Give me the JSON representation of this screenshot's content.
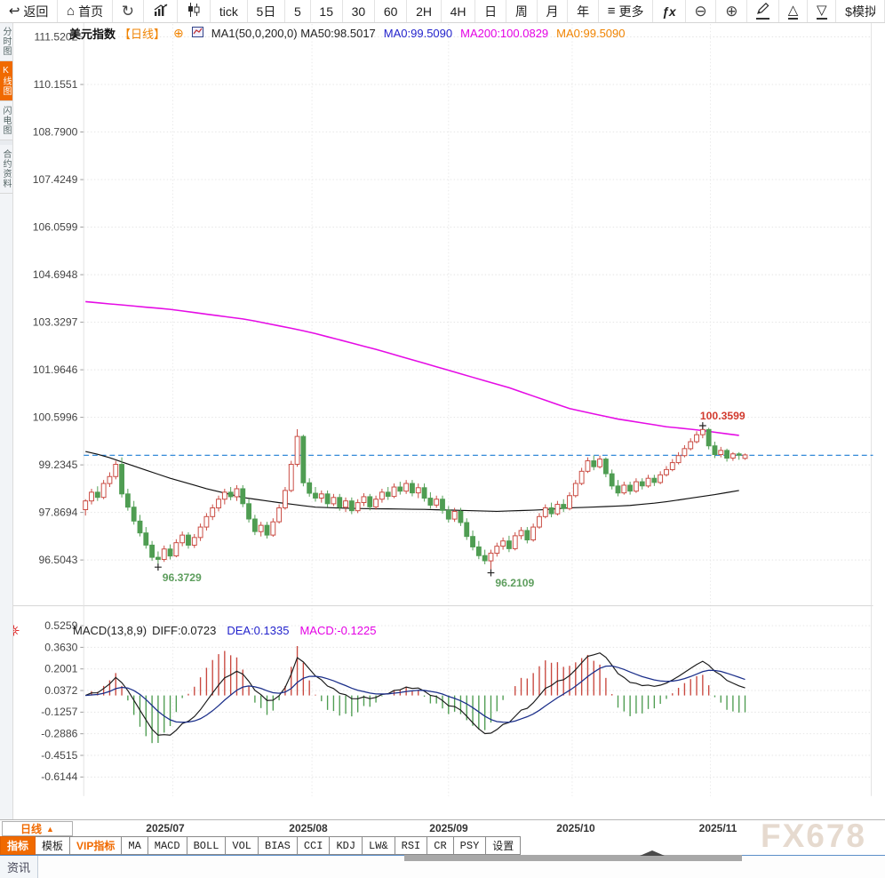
{
  "toolbar": {
    "items": [
      {
        "name": "back",
        "glyph": "↩",
        "label": "返回"
      },
      {
        "name": "home",
        "glyph": "⌂",
        "label": "首页"
      },
      {
        "name": "refresh",
        "glyph": "↻",
        "big": true
      },
      {
        "name": "line-chart",
        "svg": "lineChart"
      },
      {
        "name": "candlestick",
        "svg": "candle"
      },
      {
        "name": "tick",
        "label": "tick"
      },
      {
        "name": "period-5d",
        "label": "5日"
      },
      {
        "name": "period-5",
        "label": "5"
      },
      {
        "name": "period-15",
        "label": "15"
      },
      {
        "name": "period-30",
        "label": "30"
      },
      {
        "name": "period-60",
        "label": "60"
      },
      {
        "name": "period-2h",
        "label": "2H"
      },
      {
        "name": "period-4h",
        "label": "4H"
      },
      {
        "name": "period-day",
        "label": "日"
      },
      {
        "name": "period-week",
        "label": "周"
      },
      {
        "name": "period-month",
        "label": "月"
      },
      {
        "name": "period-year",
        "label": "年"
      },
      {
        "name": "more",
        "glyph": "≡",
        "label": "更多"
      },
      {
        "name": "fx",
        "label": "ƒx",
        "italic": true
      },
      {
        "name": "zoom-out",
        "glyph": "⊖",
        "big": true
      },
      {
        "name": "zoom-in",
        "glyph": "⊕",
        "big": true
      },
      {
        "name": "draw",
        "svg": "pencil",
        "underline": true
      },
      {
        "name": "shape-up",
        "glyph": "△",
        "underline": true
      },
      {
        "name": "shape-down",
        "glyph": "▽",
        "underline": true
      },
      {
        "name": "sim-trade",
        "label": "$模拟",
        "clip": true
      }
    ]
  },
  "sidebar": {
    "items": [
      {
        "label": "分时图",
        "active": false
      },
      {
        "label": "K线图",
        "active": true
      },
      {
        "label": "闪电图",
        "active": false
      },
      {
        "label": "合约资料",
        "active": false
      }
    ]
  },
  "chart_header": {
    "symbol": "美元指数",
    "period": "【日线】",
    "expand_icon": "⊕",
    "ma_settings": "MA1(50,0,200,0) MA50:98.5017",
    "ma0_blue": "MA0:99.5090",
    "ma200": "MA200:100.0829",
    "ma0_orange": "MA0:99.5090"
  },
  "macd_header": {
    "title": "MACD(13,8,9)",
    "diff": "DIFF:0.0723",
    "dea": "DEA:0.1335",
    "macd": "MACD:-0.1225"
  },
  "bottom": {
    "period_label": "日线",
    "period_arrow": "▲",
    "tabs": [
      {
        "label": "指标",
        "active": true
      },
      {
        "label": "模板"
      },
      {
        "label": "VIP指标",
        "vip": true
      },
      {
        "label": "MA",
        "mono": true
      },
      {
        "label": "MACD",
        "mono": true
      },
      {
        "label": "BOLL",
        "mono": true
      },
      {
        "label": "VOL",
        "mono": true
      },
      {
        "label": "BIAS",
        "mono": true
      },
      {
        "label": "CCI",
        "mono": true
      },
      {
        "label": "KDJ",
        "mono": true
      },
      {
        "label": "LW&",
        "mono": true
      },
      {
        "label": "RSI",
        "mono": true
      },
      {
        "label": "CR",
        "mono": true
      },
      {
        "label": "PSY",
        "mono": true
      },
      {
        "label": "设置"
      }
    ],
    "news_tab": "资讯"
  },
  "watermark": "FX678",
  "colors": {
    "accent": "#f06a00",
    "up": "#c9483f",
    "down": "#4f9d52",
    "ma50": "#111111",
    "ma200": "#e50ce5",
    "diff_line": "#1a1a1a",
    "dea_line": "#1b2f8a",
    "price_line": "#1b7cd4",
    "annotation_high": "#d23b2f",
    "annotation_low": "#5e9e5e"
  },
  "chart_data": {
    "type": "candlestick",
    "title": "美元指数 日线",
    "price_ticks": [
      "111.5202",
      "110.1551",
      "108.7900",
      "107.4249",
      "106.0599",
      "104.6948",
      "103.3297",
      "101.9646",
      "100.5996",
      "99.2345",
      "97.8694",
      "96.5043"
    ],
    "macd_ticks": [
      "0.5259",
      "0.3630",
      "0.2001",
      "0.0372",
      "-0.1257",
      "-0.2886",
      "-0.4515",
      "-0.6144"
    ],
    "month_labels": [
      "2025/07",
      "2025/08",
      "2025/09",
      "2025/10",
      "2025/11"
    ],
    "current_price": 99.51,
    "candles": [
      [
        97.95,
        98.25,
        97.78,
        98.2
      ],
      [
        98.2,
        98.55,
        98.1,
        98.45
      ],
      [
        98.45,
        98.62,
        98.2,
        98.3
      ],
      [
        98.3,
        98.8,
        98.25,
        98.7
      ],
      [
        98.7,
        99.02,
        98.6,
        98.9
      ],
      [
        98.9,
        99.35,
        98.82,
        99.25
      ],
      [
        99.25,
        99.45,
        98.3,
        98.4
      ],
      [
        98.4,
        98.55,
        97.92,
        98.02
      ],
      [
        98.02,
        98.2,
        97.52,
        97.62
      ],
      [
        97.62,
        97.8,
        97.18,
        97.28
      ],
      [
        97.28,
        97.45,
        96.83,
        96.93
      ],
      [
        96.93,
        97.05,
        96.48,
        96.58
      ],
      [
        96.58,
        96.75,
        96.3729,
        96.52
      ],
      [
        96.52,
        96.92,
        96.45,
        96.82
      ],
      [
        96.82,
        96.95,
        96.52,
        96.62
      ],
      [
        96.62,
        97.1,
        96.58,
        97.0
      ],
      [
        97.0,
        97.32,
        96.9,
        97.22
      ],
      [
        97.22,
        97.3,
        96.83,
        96.93
      ],
      [
        96.93,
        97.25,
        96.85,
        97.15
      ],
      [
        97.15,
        97.55,
        97.05,
        97.45
      ],
      [
        97.45,
        97.85,
        97.35,
        97.75
      ],
      [
        97.75,
        98.1,
        97.65,
        98.0
      ],
      [
        98.0,
        98.35,
        97.9,
        98.25
      ],
      [
        98.25,
        98.55,
        98.1,
        98.45
      ],
      [
        98.45,
        98.6,
        98.22,
        98.32
      ],
      [
        98.32,
        98.65,
        98.2,
        98.55
      ],
      [
        98.55,
        98.65,
        98.02,
        98.12
      ],
      [
        98.12,
        98.25,
        97.58,
        97.68
      ],
      [
        97.68,
        97.8,
        97.22,
        97.32
      ],
      [
        97.32,
        97.6,
        97.18,
        97.5
      ],
      [
        97.5,
        97.6,
        97.12,
        97.22
      ],
      [
        97.22,
        97.7,
        97.17,
        97.6
      ],
      [
        97.6,
        98.1,
        97.55,
        98.0
      ],
      [
        98.0,
        98.6,
        97.95,
        98.5
      ],
      [
        98.5,
        99.35,
        98.45,
        99.25
      ],
      [
        99.25,
        100.26,
        99.18,
        100.05
      ],
      [
        100.05,
        100.1,
        98.62,
        98.72
      ],
      [
        98.72,
        98.85,
        98.32,
        98.42
      ],
      [
        98.42,
        98.6,
        98.18,
        98.28
      ],
      [
        98.28,
        98.5,
        98.15,
        98.4
      ],
      [
        98.4,
        98.5,
        98.02,
        98.12
      ],
      [
        98.12,
        98.4,
        98.05,
        98.3
      ],
      [
        98.3,
        98.4,
        97.92,
        98.02
      ],
      [
        98.02,
        98.3,
        97.88,
        98.2
      ],
      [
        98.2,
        98.3,
        97.82,
        97.92
      ],
      [
        97.92,
        98.25,
        97.85,
        98.15
      ],
      [
        98.15,
        98.42,
        98.05,
        98.32
      ],
      [
        98.32,
        98.4,
        97.93,
        98.03
      ],
      [
        98.03,
        98.35,
        97.95,
        98.25
      ],
      [
        98.25,
        98.55,
        98.15,
        98.45
      ],
      [
        98.45,
        98.6,
        98.23,
        98.33
      ],
      [
        98.33,
        98.7,
        98.28,
        98.6
      ],
      [
        98.6,
        98.75,
        98.38,
        98.48
      ],
      [
        98.48,
        98.8,
        98.4,
        98.7
      ],
      [
        98.7,
        98.8,
        98.33,
        98.43
      ],
      [
        98.43,
        98.7,
        98.28,
        98.58
      ],
      [
        98.58,
        98.7,
        98.18,
        98.28
      ],
      [
        98.28,
        98.45,
        97.98,
        98.08
      ],
      [
        98.08,
        98.35,
        98.0,
        98.25
      ],
      [
        98.25,
        98.35,
        97.83,
        97.93
      ],
      [
        97.93,
        98.05,
        97.58,
        97.68
      ],
      [
        97.68,
        98.0,
        97.6,
        97.9
      ],
      [
        97.9,
        98.0,
        97.48,
        97.58
      ],
      [
        97.58,
        97.7,
        97.08,
        97.18
      ],
      [
        97.18,
        97.35,
        96.78,
        96.88
      ],
      [
        96.88,
        97.05,
        96.53,
        96.63
      ],
      [
        96.63,
        96.8,
        96.38,
        96.48
      ],
      [
        96.48,
        96.8,
        96.2109,
        96.7
      ],
      [
        96.7,
        97.0,
        96.6,
        96.9
      ],
      [
        96.9,
        97.15,
        96.8,
        97.05
      ],
      [
        97.05,
        97.2,
        96.73,
        96.83
      ],
      [
        96.83,
        97.3,
        96.78,
        97.2
      ],
      [
        97.2,
        97.45,
        97.1,
        97.35
      ],
      [
        97.35,
        97.45,
        96.98,
        97.08
      ],
      [
        97.08,
        97.55,
        97.03,
        97.45
      ],
      [
        97.45,
        97.85,
        97.4,
        97.75
      ],
      [
        97.75,
        98.1,
        97.7,
        98.0
      ],
      [
        98.0,
        98.15,
        97.73,
        97.83
      ],
      [
        97.83,
        98.2,
        97.78,
        98.1
      ],
      [
        98.1,
        98.25,
        97.88,
        97.98
      ],
      [
        97.98,
        98.45,
        97.93,
        98.35
      ],
      [
        98.35,
        98.8,
        98.3,
        98.7
      ],
      [
        98.7,
        99.15,
        98.65,
        99.05
      ],
      [
        99.05,
        99.45,
        99.0,
        99.35
      ],
      [
        99.35,
        99.5,
        99.08,
        99.18
      ],
      [
        99.18,
        99.5,
        99.13,
        99.4
      ],
      [
        99.4,
        99.45,
        98.88,
        98.98
      ],
      [
        98.98,
        99.1,
        98.53,
        98.63
      ],
      [
        98.63,
        98.8,
        98.33,
        98.43
      ],
      [
        98.43,
        98.75,
        98.38,
        98.65
      ],
      [
        98.65,
        98.75,
        98.38,
        98.48
      ],
      [
        98.48,
        98.85,
        98.43,
        98.75
      ],
      [
        98.75,
        98.85,
        98.53,
        98.63
      ],
      [
        98.63,
        98.95,
        98.58,
        98.85
      ],
      [
        98.85,
        98.95,
        98.63,
        98.73
      ],
      [
        98.73,
        99.05,
        98.68,
        98.95
      ],
      [
        98.95,
        99.2,
        98.9,
        99.1
      ],
      [
        99.1,
        99.4,
        99.05,
        99.3
      ],
      [
        99.3,
        99.6,
        99.25,
        99.5
      ],
      [
        99.5,
        99.8,
        99.45,
        99.7
      ],
      [
        99.7,
        100.0,
        99.65,
        99.9
      ],
      [
        99.9,
        100.2,
        99.85,
        100.1
      ],
      [
        100.1,
        100.3599,
        100.0,
        100.25
      ],
      [
        100.25,
        100.3,
        99.68,
        99.78
      ],
      [
        99.78,
        99.9,
        99.43,
        99.53
      ],
      [
        99.53,
        99.75,
        99.45,
        99.65
      ],
      [
        99.65,
        99.7,
        99.33,
        99.43
      ],
      [
        99.43,
        99.6,
        99.35,
        99.55
      ],
      [
        99.55,
        99.6,
        99.38,
        99.51
      ],
      [
        99.42,
        99.56,
        99.38,
        99.52
      ]
    ],
    "ma50_points": [
      [
        0,
        99.62
      ],
      [
        3,
        99.5
      ],
      [
        8,
        99.2
      ],
      [
        14,
        98.85
      ],
      [
        20,
        98.55
      ],
      [
        26,
        98.3
      ],
      [
        32,
        98.15
      ],
      [
        38,
        98.02
      ],
      [
        45,
        97.98
      ],
      [
        55,
        97.96
      ],
      [
        62,
        97.93
      ],
      [
        68,
        97.9
      ],
      [
        75,
        97.94
      ],
      [
        80,
        98.0
      ],
      [
        85,
        98.03
      ],
      [
        90,
        98.07
      ],
      [
        95,
        98.15
      ],
      [
        100,
        98.28
      ],
      [
        104,
        98.38
      ],
      [
        108,
        98.5
      ]
    ],
    "ma200_points": [
      [
        0,
        103.92
      ],
      [
        14,
        103.7
      ],
      [
        27,
        103.4
      ],
      [
        37,
        103.05
      ],
      [
        48,
        102.55
      ],
      [
        59,
        102.0
      ],
      [
        70,
        101.45
      ],
      [
        80,
        100.85
      ],
      [
        88,
        100.55
      ],
      [
        96,
        100.33
      ],
      [
        102,
        100.22
      ],
      [
        108,
        100.08
      ]
    ],
    "annotations": [
      {
        "text": "100.3599",
        "i": 102,
        "price": 100.3599,
        "kind": "high"
      },
      {
        "text": "96.3729",
        "i": 12,
        "price": 96.3729,
        "kind": "low"
      },
      {
        "text": "96.2109",
        "i": 67,
        "price": 96.2109,
        "kind": "low"
      }
    ],
    "macd_params": {
      "fast": 8,
      "slow": 13,
      "signal": 9
    }
  }
}
